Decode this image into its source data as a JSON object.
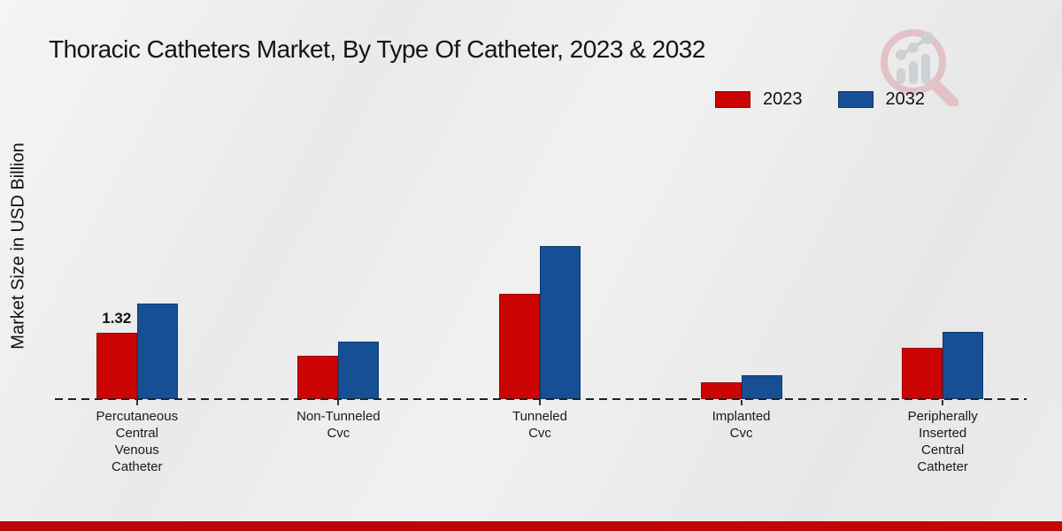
{
  "page": {
    "title": "Thoracic Catheters Market, By Type Of Catheter, 2023 & 2032"
  },
  "chart_data": {
    "type": "bar",
    "title": "Thoracic Catheters Market, By Type Of Catheter, 2023 & 2032",
    "ylabel": "Market Size in USD Billion",
    "categories": [
      "Percutaneous Central Venous Catheter",
      "Non-Tunneled Cvc",
      "Tunneled Cvc",
      "Implanted Cvc",
      "Peripherally Inserted Central Catheter"
    ],
    "category_lines": [
      [
        "Percutaneous",
        "Central",
        "Venous",
        "Catheter"
      ],
      [
        "Non-Tunneled",
        "Cvc"
      ],
      [
        "Tunneled",
        "Cvc"
      ],
      [
        "Implanted",
        "Cvc"
      ],
      [
        "Peripherally",
        "Inserted",
        "Central",
        "Catheter"
      ]
    ],
    "series": [
      {
        "name": "2023",
        "color": "#cc0404",
        "values": [
          1.32,
          0.86,
          2.09,
          0.33,
          1.02
        ]
      },
      {
        "name": "2032",
        "color": "#164f94",
        "values": [
          1.9,
          1.14,
          3.05,
          0.48,
          1.34
        ]
      }
    ],
    "data_labels": {
      "series": "2023",
      "category_index": 0,
      "text": "1.32"
    },
    "ylim": [
      0,
      3.5
    ],
    "grid": false,
    "legend_position": "top-right",
    "baseline_style": "dashed",
    "accent_color": "#c00505"
  }
}
